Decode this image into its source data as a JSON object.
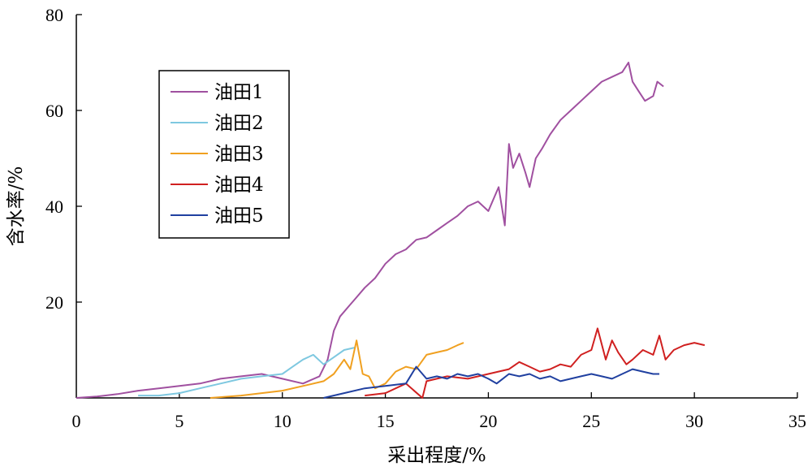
{
  "chart_data": {
    "type": "line",
    "xlabel": "采出程度/%",
    "ylabel": "含水率/%",
    "xlim": [
      0,
      35
    ],
    "ylim": [
      0,
      80
    ],
    "xticks": [
      0,
      5,
      10,
      15,
      20,
      25,
      30,
      35
    ],
    "yticks": [
      20,
      40,
      60,
      80
    ],
    "legend_position": "upper-left",
    "grid": false,
    "series": [
      {
        "name": "油田1",
        "color": "#A050A0",
        "x": [
          0.0,
          1.0,
          2.0,
          3.0,
          4.0,
          5.0,
          6.0,
          7.0,
          8.0,
          9.0,
          10.0,
          11.0,
          11.8,
          12.2,
          12.5,
          12.8,
          13.2,
          13.6,
          14.0,
          14.5,
          15.0,
          15.5,
          16.0,
          16.5,
          17.0,
          17.5,
          18.0,
          18.5,
          19.0,
          19.5,
          20.0,
          20.5,
          20.8,
          21.0,
          21.2,
          21.5,
          21.8,
          22.0,
          22.3,
          22.6,
          23.0,
          23.5,
          24.0,
          24.5,
          25.0,
          25.5,
          26.0,
          26.5,
          26.8,
          27.0,
          27.3,
          27.6,
          28.0,
          28.2,
          28.5
        ],
        "y": [
          0.0,
          0.3,
          0.8,
          1.5,
          2.0,
          2.5,
          3.0,
          4.0,
          4.5,
          5.0,
          4.0,
          3.0,
          4.5,
          8.0,
          14.0,
          17.0,
          19.0,
          21.0,
          23.0,
          25.0,
          28.0,
          30.0,
          31.0,
          33.0,
          33.5,
          35.0,
          36.5,
          38.0,
          40.0,
          41.0,
          39.0,
          44.0,
          36.0,
          53.0,
          48.0,
          51.0,
          47.0,
          44.0,
          50.0,
          52.0,
          55.0,
          58.0,
          60.0,
          62.0,
          64.0,
          66.0,
          67.0,
          68.0,
          70.0,
          66.0,
          64.0,
          62.0,
          63.0,
          66.0,
          65.0
        ]
      },
      {
        "name": "油田2",
        "color": "#7EC8E0",
        "x": [
          3.0,
          4.0,
          5.0,
          6.0,
          7.0,
          8.0,
          9.0,
          10.0,
          10.5,
          11.0,
          11.5,
          12.0,
          12.5,
          13.0,
          13.5
        ],
        "y": [
          0.5,
          0.5,
          1.0,
          2.0,
          3.0,
          4.0,
          4.5,
          5.0,
          6.5,
          8.0,
          9.0,
          7.0,
          8.5,
          10.0,
          10.5
        ]
      },
      {
        "name": "油田3",
        "color": "#F0A020",
        "x": [
          6.5,
          8.0,
          9.0,
          10.0,
          11.0,
          12.0,
          12.5,
          13.0,
          13.3,
          13.6,
          13.9,
          14.2,
          14.5,
          15.0,
          15.5,
          16.0,
          16.5,
          17.0,
          17.5,
          18.0,
          18.5,
          18.8
        ],
        "y": [
          0.0,
          0.5,
          1.0,
          1.5,
          2.5,
          3.5,
          5.0,
          8.0,
          6.0,
          12.0,
          5.0,
          4.5,
          2.0,
          3.0,
          5.5,
          6.5,
          6.0,
          9.0,
          9.5,
          10.0,
          11.0,
          11.5
        ]
      },
      {
        "name": "油田4",
        "color": "#D02020",
        "x": [
          14.0,
          15.0,
          16.0,
          16.8,
          17.0,
          17.5,
          18.0,
          19.0,
          20.0,
          21.0,
          21.5,
          22.0,
          22.5,
          23.0,
          23.5,
          24.0,
          24.5,
          25.0,
          25.3,
          25.7,
          26.0,
          26.3,
          26.7,
          27.0,
          27.5,
          28.0,
          28.3,
          28.6,
          29.0,
          29.5,
          30.0,
          30.5
        ],
        "y": [
          0.5,
          1.0,
          3.0,
          0.0,
          3.5,
          4.0,
          4.5,
          4.0,
          5.0,
          6.0,
          7.5,
          6.5,
          5.5,
          6.0,
          7.0,
          6.5,
          9.0,
          10.0,
          14.5,
          8.0,
          12.0,
          9.5,
          7.0,
          8.0,
          10.0,
          9.0,
          13.0,
          8.0,
          10.0,
          11.0,
          11.5,
          11.0
        ]
      },
      {
        "name": "油田5",
        "color": "#2040A0",
        "x": [
          12.0,
          13.0,
          14.0,
          15.0,
          16.0,
          16.5,
          17.0,
          17.5,
          18.0,
          18.5,
          19.0,
          19.5,
          20.0,
          20.4,
          20.7,
          21.0,
          21.5,
          22.0,
          22.5,
          23.0,
          23.5,
          24.0,
          24.5,
          25.0,
          25.5,
          26.0,
          26.5,
          27.0,
          27.5,
          28.0,
          28.3
        ],
        "y": [
          0.0,
          1.0,
          2.0,
          2.5,
          3.0,
          6.5,
          4.0,
          4.5,
          4.0,
          5.0,
          4.5,
          5.0,
          4.0,
          3.0,
          4.0,
          5.0,
          4.5,
          5.0,
          4.0,
          4.5,
          3.5,
          4.0,
          4.5,
          5.0,
          4.5,
          4.0,
          5.0,
          6.0,
          5.5,
          5.0,
          5.0
        ]
      }
    ]
  }
}
